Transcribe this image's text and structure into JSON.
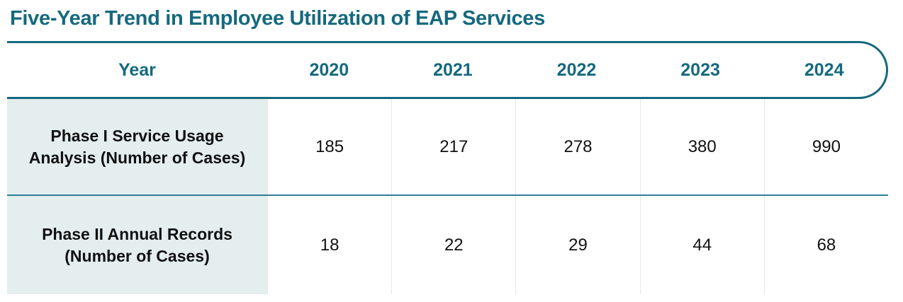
{
  "title": "Five-Year Trend in Employee Utilization of EAP Services",
  "colors": {
    "accent_teal": "#15697e",
    "header_border": "#16697e",
    "row_divider": "#2f7f99",
    "label_cell_background": "#e4eeef",
    "column_separator": "#e5e7e7",
    "value_text": "#111111"
  },
  "table": {
    "header": {
      "year_label": "Year",
      "years": [
        "2020",
        "2021",
        "2022",
        "2023",
        "2024"
      ]
    },
    "rows": [
      {
        "label_line1": "Phase I Service Usage",
        "label_line2": "Analysis (Number of Cases)",
        "values": [
          "185",
          "217",
          "278",
          "380",
          "990"
        ]
      },
      {
        "label_line1": "Phase II Annual Records",
        "label_line2": "(Number of Cases)",
        "values": [
          "18",
          "22",
          "29",
          "44",
          "68"
        ]
      }
    ]
  },
  "chart_data": {
    "type": "table",
    "title": "Five-Year Trend in Employee Utilization of EAP Services",
    "columns": [
      "Year",
      "2020",
      "2021",
      "2022",
      "2023",
      "2024"
    ],
    "rows": [
      {
        "label": "Phase I Service Usage Analysis (Number of Cases)",
        "values": [
          185,
          217,
          278,
          380,
          990
        ]
      },
      {
        "label": "Phase II Annual Records (Number of Cases)",
        "values": [
          18,
          22,
          29,
          44,
          68
        ]
      }
    ]
  }
}
